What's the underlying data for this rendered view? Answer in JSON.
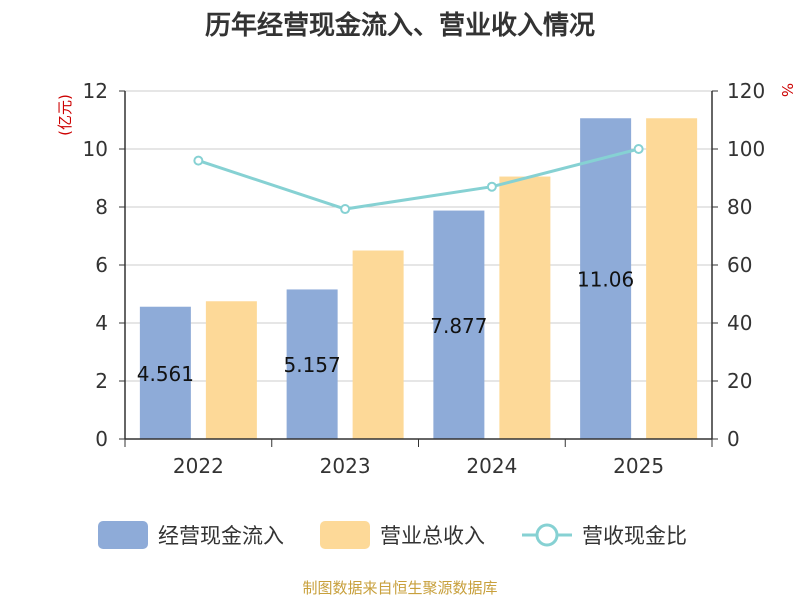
{
  "chart_data": {
    "type": "bar",
    "title": "历年经营现金流入、营业收入情况",
    "categories": [
      "2022",
      "2023",
      "2024",
      "2025"
    ],
    "series": [
      {
        "name": "经营现金流入",
        "kind": "bar",
        "axis": "left",
        "color": "#8eabd8",
        "values": [
          4.561,
          5.157,
          7.877,
          11.06
        ],
        "labels": [
          "4.561",
          "5.157",
          "7.877",
          "11.06"
        ]
      },
      {
        "name": "营业总收入",
        "kind": "bar",
        "axis": "left",
        "color": "#fdd998",
        "values": [
          4.75,
          6.5,
          9.05,
          11.06
        ]
      },
      {
        "name": "营收现金比",
        "kind": "line",
        "axis": "right",
        "color": "#86d1d3",
        "values": [
          96.0,
          79.3,
          87.0,
          100.0
        ]
      }
    ],
    "y_left": {
      "label": "(亿元)",
      "min": 0,
      "max": 12,
      "ticks": [
        "0",
        "2",
        "4",
        "6",
        "8",
        "10",
        "12"
      ]
    },
    "y_right": {
      "label": "%",
      "min": 0,
      "max": 120,
      "ticks": [
        "0",
        "20",
        "40",
        "60",
        "80",
        "100",
        "120"
      ]
    },
    "grid": true,
    "legend_position": "bottom"
  },
  "footer": "制图数据来自恒生聚源数据库",
  "colors": {
    "axis_unit": "#cc0000",
    "footer": "#c8a03c",
    "grid": "#cccccc",
    "axis": "#333333"
  }
}
